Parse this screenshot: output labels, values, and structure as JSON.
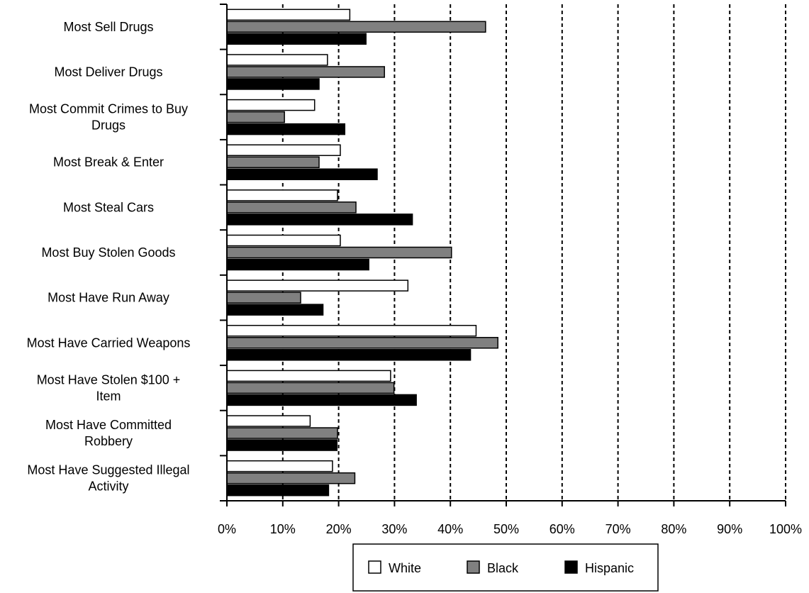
{
  "chart_data": {
    "type": "bar",
    "orientation": "horizontal",
    "categories": [
      [
        "Most Sell Drugs"
      ],
      [
        "Most Deliver Drugs"
      ],
      [
        "Most Commit Crimes to Buy",
        "Drugs"
      ],
      [
        "Most Break & Enter"
      ],
      [
        "Most Steal Cars"
      ],
      [
        "Most Buy Stolen Goods"
      ],
      [
        "Most Have Run Away"
      ],
      [
        "Most Have Carried Weapons"
      ],
      [
        "Most Have Stolen $100 +",
        "Item"
      ],
      [
        "Most Have Committed",
        "Robbery"
      ],
      [
        "Most Have Suggested Illegal",
        "Activity"
      ]
    ],
    "series": [
      {
        "name": "White",
        "color": "#ffffff",
        "values": [
          22,
          18,
          15.7,
          20.3,
          19.8,
          20.3,
          32.4,
          44.6,
          29.3,
          14.9,
          18.9
        ]
      },
      {
        "name": "Black",
        "color": "#808080",
        "values": [
          46.3,
          28.2,
          10.3,
          16.5,
          23.1,
          40.2,
          13.2,
          48.5,
          29.9,
          19.8,
          22.9
        ]
      },
      {
        "name": "Hispanic",
        "color": "#000000",
        "values": [
          24.9,
          16.5,
          21.1,
          26.9,
          33.2,
          25.4,
          17.2,
          43.6,
          33.9,
          19.7,
          18.2
        ]
      }
    ],
    "xlim": [
      0,
      100
    ],
    "xticks": [
      0,
      10,
      20,
      30,
      40,
      50,
      60,
      70,
      80,
      90,
      100
    ],
    "tick_labels": [
      "0%",
      "10%",
      "20%",
      "30%",
      "40%",
      "50%",
      "60%",
      "70%",
      "80%",
      "90%",
      "100%"
    ],
    "gridlines": "dashed vertical",
    "legend_position": "bottom",
    "title": "",
    "xlabel": "",
    "ylabel": ""
  }
}
